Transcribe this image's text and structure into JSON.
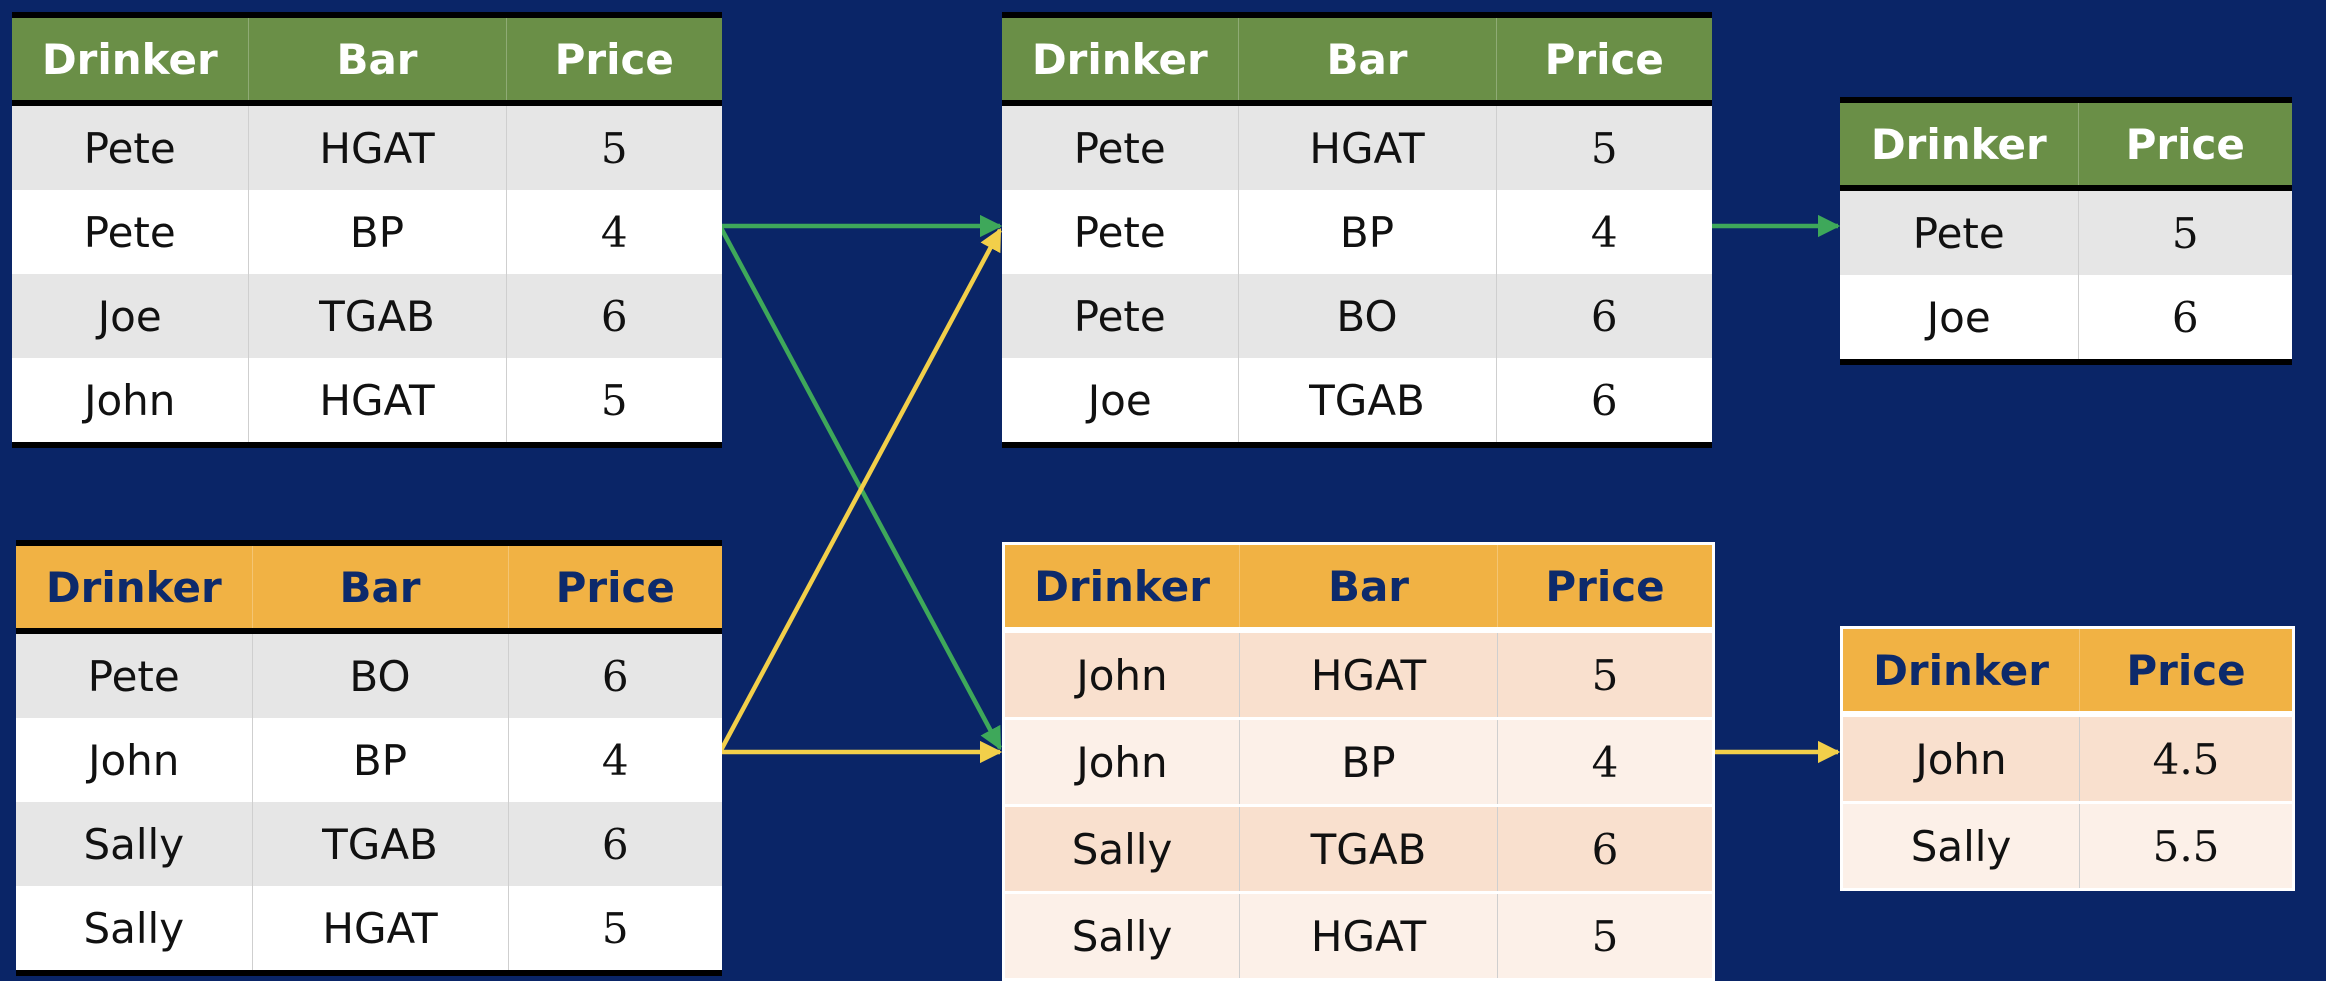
{
  "colors": {
    "background": "#0a2567",
    "green_header": "#6a8f47",
    "orange_header": "#f1b244",
    "green_arrow": "#3ea85a",
    "yellow_arrow": "#f2cf4a"
  },
  "headers": {
    "drinker": "Drinker",
    "bar": "Bar",
    "price": "Price"
  },
  "table_top_left": {
    "rows": [
      {
        "drinker": "Pete",
        "bar": "HGAT",
        "price": "5"
      },
      {
        "drinker": "Pete",
        "bar": "BP",
        "price": "4"
      },
      {
        "drinker": "Joe",
        "bar": "TGAB",
        "price": "6"
      },
      {
        "drinker": "John",
        "bar": "HGAT",
        "price": "5"
      }
    ]
  },
  "table_bottom_left": {
    "rows": [
      {
        "drinker": "Pete",
        "bar": "BO",
        "price": "6"
      },
      {
        "drinker": "John",
        "bar": "BP",
        "price": "4"
      },
      {
        "drinker": "Sally",
        "bar": "TGAB",
        "price": "6"
      },
      {
        "drinker": "Sally",
        "bar": "HGAT",
        "price": "5"
      }
    ]
  },
  "table_top_middle": {
    "rows": [
      {
        "drinker": "Pete",
        "bar": "HGAT",
        "price": "5"
      },
      {
        "drinker": "Pete",
        "bar": "BP",
        "price": "4"
      },
      {
        "drinker": "Pete",
        "bar": "BO",
        "price": "6"
      },
      {
        "drinker": "Joe",
        "bar": "TGAB",
        "price": "6"
      }
    ]
  },
  "table_bottom_middle": {
    "rows": [
      {
        "drinker": "John",
        "bar": "HGAT",
        "price": "5"
      },
      {
        "drinker": "John",
        "bar": "BP",
        "price": "4"
      },
      {
        "drinker": "Sally",
        "bar": "TGAB",
        "price": "6"
      },
      {
        "drinker": "Sally",
        "bar": "HGAT",
        "price": "5"
      }
    ]
  },
  "table_top_right": {
    "rows": [
      {
        "drinker": "Pete",
        "price": "5"
      },
      {
        "drinker": "Joe",
        "price": "6"
      }
    ]
  },
  "table_bottom_right": {
    "rows": [
      {
        "drinker": "John",
        "price": "4.5"
      },
      {
        "drinker": "Sally",
        "price": "5.5"
      }
    ]
  }
}
